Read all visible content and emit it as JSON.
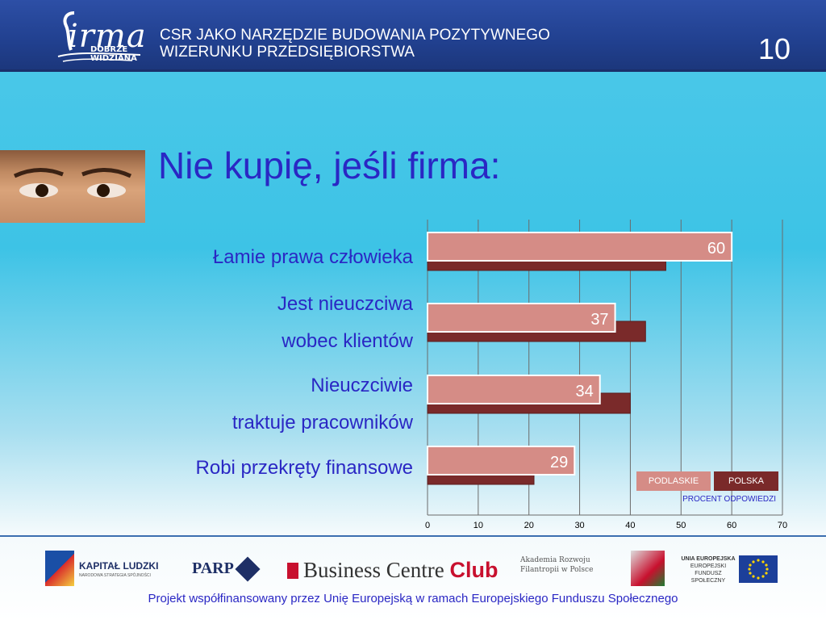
{
  "header": {
    "logo_word": "irma",
    "logo_sub1": "DOBRZE",
    "logo_sub2": "WIDZIANA",
    "title": "CSR JAKO NARZĘDZIE  BUDOWANIA POZYTYWNEGO\nWIZERUNKU PRZEDSIĘBIORSTWA",
    "slide_number": "10"
  },
  "slide": {
    "title": "Nie kupię, jeśli firma:"
  },
  "chart_data": {
    "type": "bar",
    "orientation": "horizontal",
    "categories": [
      "Łamie prawa człowieka",
      "Jest nieuczciwa\nwobec klientów",
      "Nieuczciwie\ntraktuje pracowników",
      "Robi przekręty finansowe"
    ],
    "series": [
      {
        "name": "PODLASKIE",
        "values": [
          60,
          37,
          34,
          29
        ],
        "color": "#d58c86"
      },
      {
        "name": "POLSKA",
        "values": [
          47,
          43,
          40,
          21
        ],
        "color": "#7a2a2a"
      }
    ],
    "data_labels": [
      "60",
      "37",
      "34",
      "29"
    ],
    "xlim": [
      0,
      70
    ],
    "ticks": [
      "0",
      "10",
      "20",
      "30",
      "40",
      "50",
      "60",
      "70"
    ],
    "xlabel": "PROCENT ODPOWIEDZI",
    "grid": true,
    "legend_placement": "bottom-right"
  },
  "footer": {
    "logos": {
      "kapital": "KAPITAŁ LUDZKI",
      "kapital_sub": "NARODOWA STRATEGIA SPÓJNOŚCI",
      "parp": "PARP",
      "bcc_text": "Business Centre ",
      "bcc_club": "Club",
      "afp": "Akademia Rozwoju\nFilantropii w Polsce",
      "ue_title": "UNIA EUROPEJSKA",
      "ue_sub": "EUROPEJSKI\nFUNDUSZ SPOŁECZNY"
    },
    "text": "Projekt współfinansowany przez Unię Europejską w ramach Europejskiego Funduszu Społecznego"
  }
}
